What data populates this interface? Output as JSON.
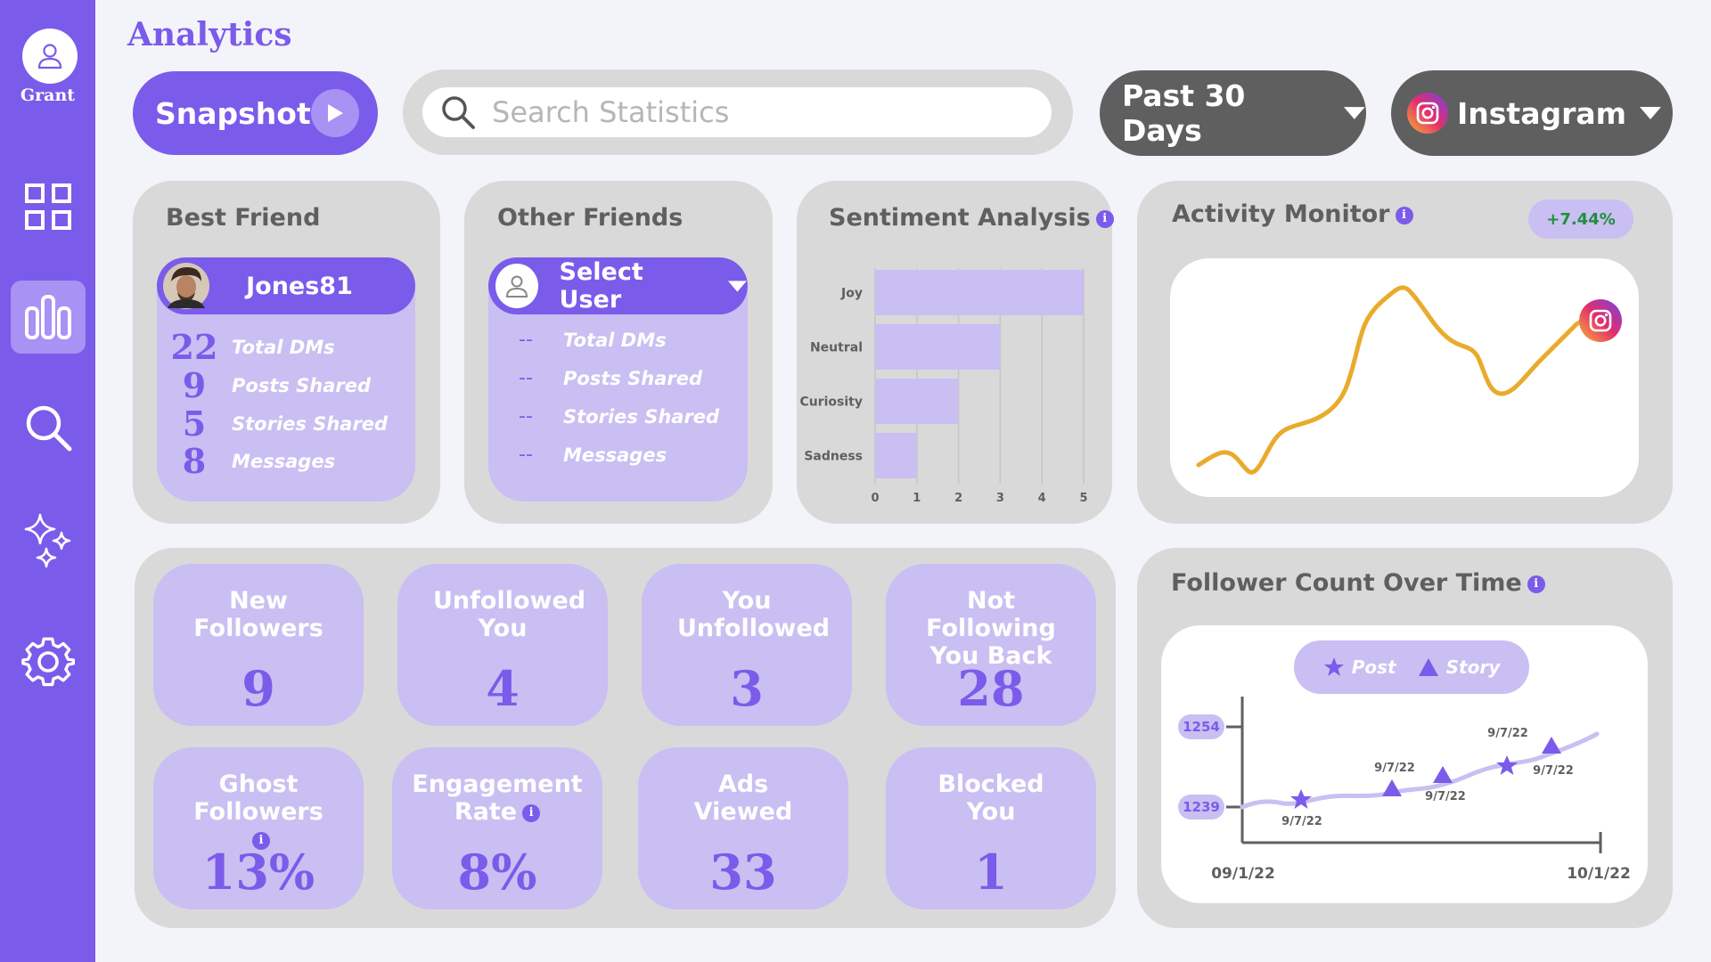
{
  "sidebar": {
    "user_name": "Grant",
    "items": [
      {
        "icon": "grid-icon"
      },
      {
        "icon": "bar-chart-icon",
        "active": true
      },
      {
        "icon": "search-icon"
      },
      {
        "icon": "sparkles-icon"
      },
      {
        "icon": "gear-icon"
      }
    ]
  },
  "header": {
    "title": "Analytics",
    "snapshot_label": "Snapshot",
    "search_placeholder": "Search Statistics",
    "period_label": "Past 30 Days",
    "platform_label": "Instagram"
  },
  "best_friend": {
    "title": "Best Friend",
    "user": "Jones81",
    "stats": [
      {
        "value": "22",
        "label": "Total DMs"
      },
      {
        "value": "9",
        "label": "Posts Shared"
      },
      {
        "value": "5",
        "label": "Stories Shared"
      },
      {
        "value": "8",
        "label": "Messages"
      }
    ]
  },
  "other_friends": {
    "title": "Other Friends",
    "select_label": "Select User",
    "stats": [
      {
        "value": "--",
        "label": "Total DMs"
      },
      {
        "value": "--",
        "label": "Posts Shared"
      },
      {
        "value": "--",
        "label": "Stories Shared"
      },
      {
        "value": "--",
        "label": "Messages"
      }
    ]
  },
  "sentiment": {
    "title": "Sentiment Analysis"
  },
  "activity": {
    "title": "Activity Monitor",
    "change": "+7.44%"
  },
  "tiles": [
    {
      "label": "New Followers",
      "value": "9"
    },
    {
      "label": "Unfollowed You",
      "value": "4"
    },
    {
      "label": "You Unfollowed",
      "value": "3"
    },
    {
      "label": "Not Following You Back",
      "value": "28"
    },
    {
      "label": "Ghost Followers",
      "value": "13%",
      "info": true
    },
    {
      "label": "Engagement Rate",
      "value": "8%",
      "info": true
    },
    {
      "label": "Ads Viewed",
      "value": "33"
    },
    {
      "label": "Blocked You",
      "value": "1"
    }
  ],
  "followers": {
    "title": "Follower Count Over Time",
    "legend_post": "Post",
    "legend_story": "Story",
    "y_high": "1254",
    "y_low": "1239",
    "x_start": "09/1/22",
    "x_end": "10/1/22",
    "markers": [
      {
        "type": "star",
        "label": "9/7/22"
      },
      {
        "type": "triangle",
        "label": "9/7/22"
      },
      {
        "type": "triangle",
        "label": "9/7/22"
      },
      {
        "type": "star",
        "label": "9/7/22"
      },
      {
        "type": "triangle",
        "label": "9/7/22"
      }
    ]
  },
  "chart_data": {
    "type": "bar",
    "orientation": "horizontal",
    "categories": [
      "Joy",
      "Neutral",
      "Curiosity",
      "Sadness"
    ],
    "values": [
      5,
      3,
      2,
      1
    ],
    "xlim": [
      0,
      5
    ],
    "xticks": [
      "0",
      "1",
      "2",
      "3",
      "4",
      "5"
    ],
    "grid": true,
    "color": "#c9bff2"
  },
  "colors": {
    "accent": "#7b5bea",
    "accent_light": "#c9bff2",
    "card_bg": "#d9d9d9",
    "line": "#e9ab2c",
    "positive": "#1e8f3c"
  }
}
